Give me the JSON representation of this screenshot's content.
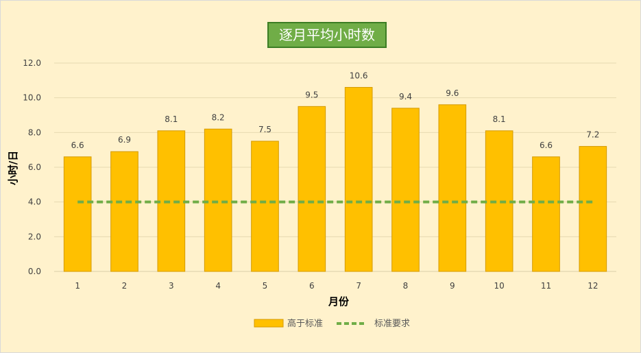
{
  "chart_data": {
    "type": "bar",
    "title": "逐月平均小时数",
    "xlabel": "月份",
    "ylabel": "小时/日",
    "categories": [
      "1",
      "2",
      "3",
      "4",
      "5",
      "6",
      "7",
      "8",
      "9",
      "10",
      "11",
      "12"
    ],
    "series": [
      {
        "name": "高于标准",
        "kind": "bar",
        "color": "#ffc000",
        "border_color": "#d49a00",
        "values": [
          6.6,
          6.9,
          8.1,
          8.2,
          7.5,
          9.5,
          10.6,
          9.4,
          9.6,
          8.1,
          6.6,
          7.2
        ],
        "data_labels": [
          "6.6",
          "6.9",
          "8.1",
          "8.2",
          "7.5",
          "9.5",
          "10.6",
          "9.4",
          "9.6",
          "8.1",
          "6.6",
          "7.2"
        ]
      },
      {
        "name": "标准要求",
        "kind": "dashed-line",
        "color": "#70ad47",
        "values": [
          4.0,
          4.0,
          4.0,
          4.0,
          4.0,
          4.0,
          4.0,
          4.0,
          4.0,
          4.0,
          4.0,
          4.0
        ]
      }
    ],
    "ylim": [
      0,
      12
    ],
    "y_ticks": [
      "0.0",
      "2.0",
      "4.0",
      "6.0",
      "8.0",
      "10.0",
      "12.0"
    ],
    "grid": true,
    "legend_position": "bottom"
  },
  "colors": {
    "background": "#fff2cc",
    "title_background": "#70ad47",
    "title_text": "#ffffff",
    "gridline": "#e6d9b0"
  }
}
